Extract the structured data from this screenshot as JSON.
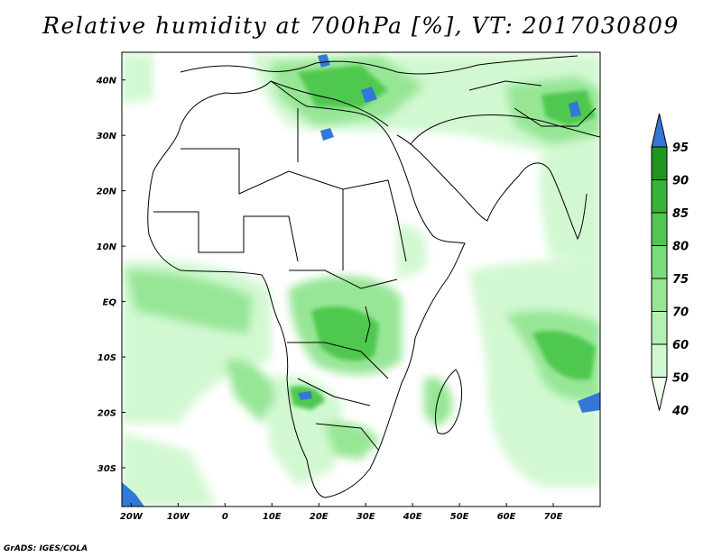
{
  "title": "Relative humidity at 700hPa [%], VT: 2017030809",
  "credit": "GrADS: IGES/COLA",
  "map": {
    "lon_range": [
      -22,
      80
    ],
    "lat_range": [
      -37,
      45
    ],
    "lon_ticks": [
      {
        "value": -20,
        "label": "20W"
      },
      {
        "value": -10,
        "label": "10W"
      },
      {
        "value": 0,
        "label": "0"
      },
      {
        "value": 10,
        "label": "10E"
      },
      {
        "value": 20,
        "label": "20E"
      },
      {
        "value": 30,
        "label": "30E"
      },
      {
        "value": 40,
        "label": "40E"
      },
      {
        "value": 50,
        "label": "50E"
      },
      {
        "value": 60,
        "label": "60E"
      },
      {
        "value": 70,
        "label": "70E"
      }
    ],
    "lat_ticks": [
      {
        "value": 40,
        "label": "40N"
      },
      {
        "value": 30,
        "label": "30N"
      },
      {
        "value": 20,
        "label": "20N"
      },
      {
        "value": 10,
        "label": "10N"
      },
      {
        "value": 0,
        "label": "EQ"
      },
      {
        "value": -10,
        "label": "10S"
      },
      {
        "value": -20,
        "label": "20S"
      },
      {
        "value": -30,
        "label": "30S"
      }
    ]
  },
  "colorbar": {
    "levels": [
      "40",
      "50",
      "60",
      "70",
      "75",
      "80",
      "85",
      "90",
      "95"
    ],
    "colors": [
      "#f0fff0",
      "#d2f8d2",
      "#b4f0b4",
      "#96e696",
      "#78dc78",
      "#50c850",
      "#37b437",
      "#1e961e",
      "#3278d7"
    ]
  }
}
